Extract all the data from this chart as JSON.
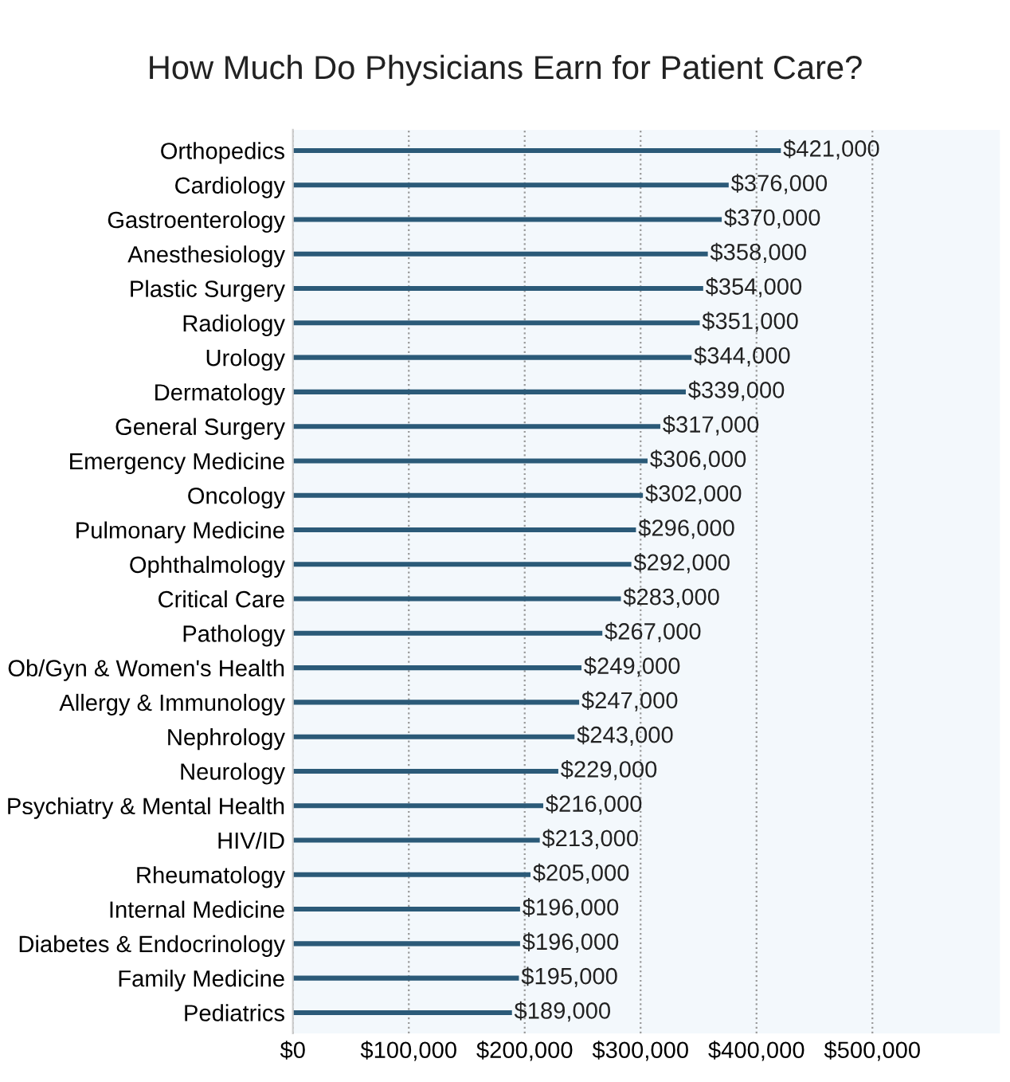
{
  "chart_data": {
    "type": "bar",
    "orientation": "horizontal",
    "title": "How Much Do Physicians Earn for Patient Care?",
    "categories": [
      "Orthopedics",
      "Cardiology",
      "Gastroenterology",
      "Anesthesiology",
      "Plastic Surgery",
      "Radiology",
      "Urology",
      "Dermatology",
      "General Surgery",
      "Emergency Medicine",
      "Oncology",
      "Pulmonary Medicine",
      "Ophthalmology",
      "Critical Care",
      "Pathology",
      "Ob/Gyn & Women's Health",
      "Allergy & Immunology",
      "Nephrology",
      "Neurology",
      "Psychiatry & Mental Health",
      "HIV/ID",
      "Rheumatology",
      "Internal Medicine",
      "Diabetes & Endocrinology",
      "Family Medicine",
      "Pediatrics"
    ],
    "values": [
      421000,
      376000,
      370000,
      358000,
      354000,
      351000,
      344000,
      339000,
      317000,
      306000,
      302000,
      296000,
      292000,
      283000,
      267000,
      249000,
      247000,
      243000,
      229000,
      216000,
      213000,
      205000,
      196000,
      196000,
      195000,
      189000
    ],
    "value_labels": [
      "$421,000",
      "$376,000",
      "$370,000",
      "$358,000",
      "$354,000",
      "$351,000",
      "$344,000",
      "$339,000",
      "$317,000",
      "$306,000",
      "$302,000",
      "$296,000",
      "$292,000",
      "$283,000",
      "$267,000",
      "$249,000",
      "$247,000",
      "$243,000",
      "$229,000",
      "$216,000",
      "$213,000",
      "$205,000",
      "$196,000",
      "$196,000",
      "$195,000",
      "$189,000"
    ],
    "color": "#2b5a78",
    "xlim": [
      0,
      610000
    ],
    "xticks": [
      {
        "value": 0,
        "label": "$0"
      },
      {
        "value": 100000,
        "label": "$100,000"
      },
      {
        "value": 200000,
        "label": "$200,000"
      },
      {
        "value": 300000,
        "label": "$300,000"
      },
      {
        "value": 400000,
        "label": "$400,000"
      },
      {
        "value": 500000,
        "label": "$500,000"
      }
    ],
    "grid": "x",
    "legend": false
  }
}
